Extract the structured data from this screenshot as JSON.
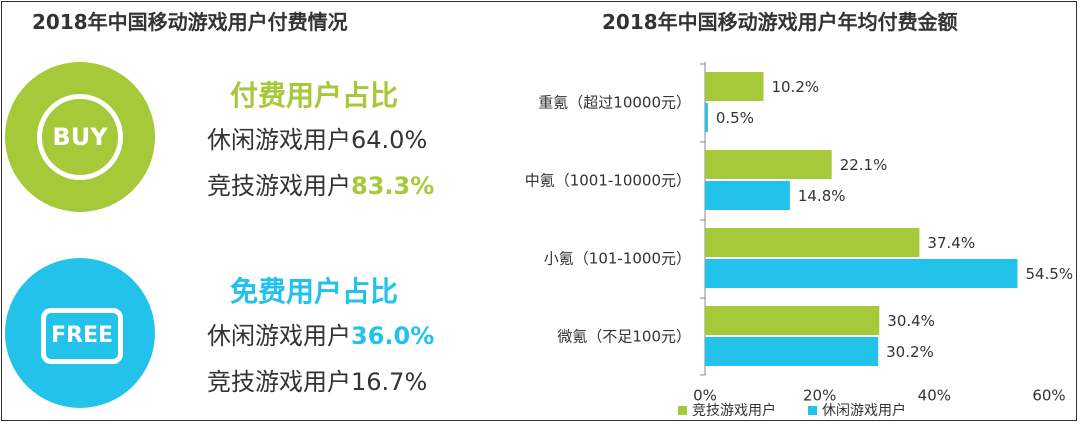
{
  "left_title": "2018年中国移动游戏用户付费情况",
  "paying": {
    "icon_label": "BUY",
    "heading": "付费用户占比",
    "casual_label": "休闲游戏用户",
    "casual_value": "64.0%",
    "competitive_label": "竞技游戏用户",
    "competitive_value": "83.3%"
  },
  "free": {
    "icon_label": "FREE",
    "heading": "免费用户占比",
    "casual_label": "休闲游戏用户",
    "casual_value": "36.0%",
    "competitive_label": "竞技游戏用户",
    "competitive_value": "16.7%"
  },
  "colors": {
    "green": "#a6c93a",
    "blue": "#22c2ea"
  },
  "chart_data": {
    "type": "bar",
    "orientation": "horizontal",
    "title": "2018年中国移动游戏用户年均付费金额",
    "categories": [
      "重氪（超过10000元）",
      "中氪（1001-10000元）",
      "小氪（101-1000元）",
      "微氪（不足100元）"
    ],
    "series": [
      {
        "name": "竞技游戏用户",
        "values": [
          10.2,
          22.1,
          37.4,
          30.4
        ],
        "labels": [
          "10.2%",
          "22.1%",
          "37.4%",
          "30.4%"
        ],
        "color": "#a6c93a"
      },
      {
        "name": "休闲游戏用户",
        "values": [
          0.5,
          14.8,
          54.5,
          30.2
        ],
        "labels": [
          "0.5%",
          "14.8%",
          "54.5%",
          "30.2%"
        ],
        "color": "#22c2ea"
      }
    ],
    "xlim": [
      0,
      60
    ],
    "xticks": [
      "0%",
      "20%",
      "40%",
      "60%"
    ],
    "legend": "bottom-left",
    "grid": false
  }
}
